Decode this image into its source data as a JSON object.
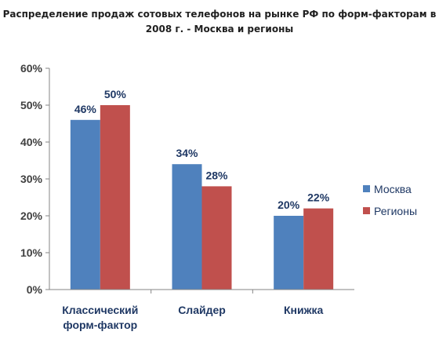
{
  "chart_data": {
    "type": "bar",
    "title_lines": [
      "Распределение продаж сотовых телефонов на рынке РФ по форм-факторам в",
      "2008 г. - Москва и регионы"
    ],
    "categories": [
      [
        "Классический",
        "форм-фактор"
      ],
      [
        "Слайдер"
      ],
      [
        "Книжка"
      ]
    ],
    "series": [
      {
        "name": "Москва",
        "values": [
          46,
          34,
          20
        ],
        "labels": [
          "46%",
          "34%",
          "20%"
        ],
        "color": "#4f81bd"
      },
      {
        "name": "Регионы",
        "values": [
          50,
          28,
          22
        ],
        "labels": [
          "50%",
          "28%",
          "22%"
        ],
        "color": "#c0504d"
      }
    ],
    "y_ticks": [
      {
        "value": 0,
        "label": "0%"
      },
      {
        "value": 10,
        "label": "10%"
      },
      {
        "value": 20,
        "label": "20%"
      },
      {
        "value": 30,
        "label": "30%"
      },
      {
        "value": 40,
        "label": "40%"
      },
      {
        "value": 50,
        "label": "50%"
      },
      {
        "value": 60,
        "label": "60%"
      }
    ],
    "ylim": [
      0,
      60
    ],
    "grid": false,
    "legend": "right"
  }
}
